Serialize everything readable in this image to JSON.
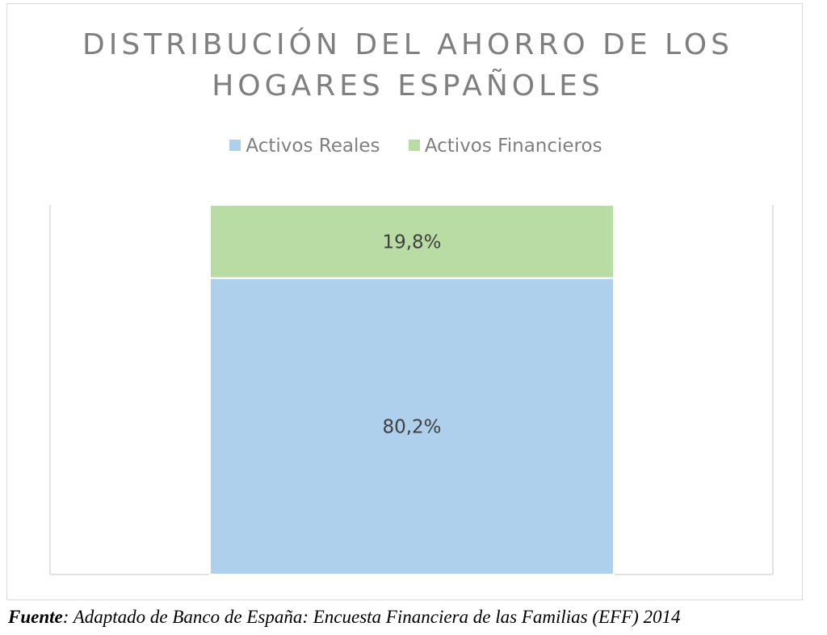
{
  "chart_data": {
    "type": "bar",
    "stacked": true,
    "title_lines": [
      "DISTRIBUCIÓN DEL AHORRO DE LOS",
      "HOGARES ESPAÑOLES"
    ],
    "legend_position": "top",
    "categories": [
      ""
    ],
    "series": [
      {
        "name": "Activos Reales",
        "values": [
          80.2
        ],
        "label": "80,2%",
        "color": "#afd0ec"
      },
      {
        "name": "Activos Financieros",
        "values": [
          19.8
        ],
        "label": "19,8%",
        "color": "#b9dca4"
      }
    ],
    "ylim": [
      0,
      100
    ],
    "grid": false
  },
  "source": {
    "prefix": "Fuente",
    "text": ": Adaptado de Banco de España: Encuesta Financiera de las Familias (EFF) 2014"
  }
}
